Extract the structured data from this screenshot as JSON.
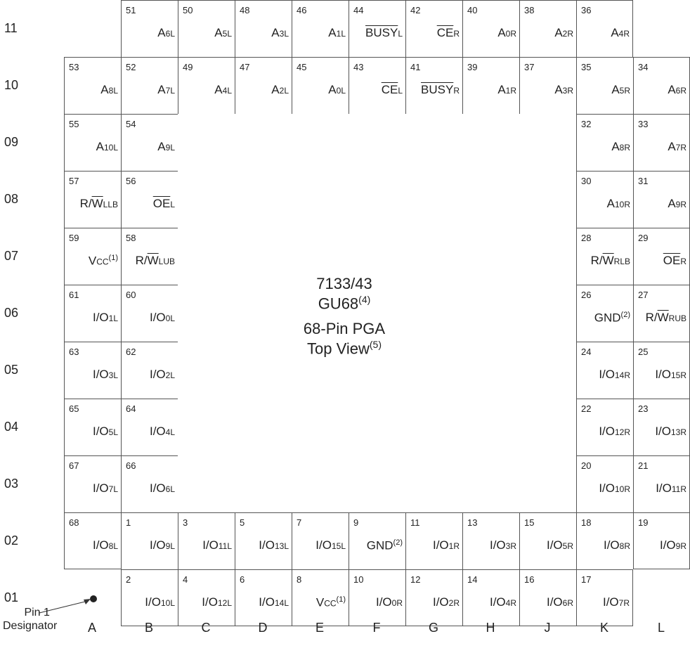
{
  "row_labels": [
    "11",
    "10",
    "09",
    "08",
    "07",
    "06",
    "05",
    "04",
    "03",
    "02",
    "01"
  ],
  "col_labels": [
    "A",
    "B",
    "C",
    "D",
    "E",
    "F",
    "G",
    "H",
    "J",
    "K",
    "L"
  ],
  "center": {
    "line1": "7133/43",
    "line2": "GU68",
    "line2_sup": "(4)",
    "line3": "68-Pin  PGA",
    "line4": "Top View",
    "line4_sup": "(5)"
  },
  "pin1_designator": {
    "line1": "Pin 1",
    "line2": "Designator"
  },
  "pins": [
    {
      "num": "51",
      "col": 1,
      "row": 0,
      "main": "A",
      "sub": "6L"
    },
    {
      "num": "50",
      "col": 2,
      "row": 0,
      "main": "A",
      "sub": "5L"
    },
    {
      "num": "48",
      "col": 3,
      "row": 0,
      "main": "A",
      "sub": "3L"
    },
    {
      "num": "46",
      "col": 4,
      "row": 0,
      "main": "A",
      "sub": "1L"
    },
    {
      "num": "44",
      "col": 5,
      "row": 0,
      "main": "BUSY",
      "sub": "L",
      "overline": true
    },
    {
      "num": "42",
      "col": 6,
      "row": 0,
      "main": "CE",
      "sub": "R",
      "overline": true
    },
    {
      "num": "40",
      "col": 7,
      "row": 0,
      "main": "A",
      "sub": "0R"
    },
    {
      "num": "38",
      "col": 8,
      "row": 0,
      "main": "A",
      "sub": "2R"
    },
    {
      "num": "36",
      "col": 9,
      "row": 0,
      "main": "A",
      "sub": "4R",
      "rb": true
    },
    {
      "num": "53",
      "col": 0,
      "row": 1,
      "main": "A",
      "sub": "8L"
    },
    {
      "num": "52",
      "col": 1,
      "row": 1,
      "main": "A",
      "sub": "7L"
    },
    {
      "num": "49",
      "col": 2,
      "row": 1,
      "main": "A",
      "sub": "4L"
    },
    {
      "num": "47",
      "col": 3,
      "row": 1,
      "main": "A",
      "sub": "2L"
    },
    {
      "num": "45",
      "col": 4,
      "row": 1,
      "main": "A",
      "sub": "0L"
    },
    {
      "num": "43",
      "col": 5,
      "row": 1,
      "main": "CE",
      "sub": "L",
      "overline": true
    },
    {
      "num": "41",
      "col": 6,
      "row": 1,
      "main": "BUSY",
      "sub": "R",
      "overline": true
    },
    {
      "num": "39",
      "col": 7,
      "row": 1,
      "main": "A",
      "sub": "1R"
    },
    {
      "num": "37",
      "col": 8,
      "row": 1,
      "main": "A",
      "sub": "3R"
    },
    {
      "num": "35",
      "col": 9,
      "row": 1,
      "main": "A",
      "sub": "5R"
    },
    {
      "num": "34",
      "col": 10,
      "row": 1,
      "main": "A",
      "sub": "6R"
    },
    {
      "num": "55",
      "col": 0,
      "row": 2,
      "main": "A",
      "sub": "10L"
    },
    {
      "num": "54",
      "col": 1,
      "row": 2,
      "main": "A",
      "sub": "9L"
    },
    {
      "num": "32",
      "col": 9,
      "row": 2,
      "main": "A",
      "sub": "8R"
    },
    {
      "num": "33",
      "col": 10,
      "row": 2,
      "main": "A",
      "sub": "7R"
    },
    {
      "num": "57",
      "col": 0,
      "row": 3,
      "main": "R/",
      "ovpart": "W",
      "sub": "LLB"
    },
    {
      "num": "56",
      "col": 1,
      "row": 3,
      "main": "OE",
      "sub": "L",
      "overline": true
    },
    {
      "num": "30",
      "col": 9,
      "row": 3,
      "main": "A",
      "sub": "10R"
    },
    {
      "num": "31",
      "col": 10,
      "row": 3,
      "main": "A",
      "sub": "9R"
    },
    {
      "num": "59",
      "col": 0,
      "row": 4,
      "main": "V",
      "sub": "CC",
      "sup": "(1)"
    },
    {
      "num": "58",
      "col": 1,
      "row": 4,
      "main": "R/",
      "ovpart": "W",
      "sub": "LUB"
    },
    {
      "num": "28",
      "col": 9,
      "row": 4,
      "main": "R/",
      "ovpart": "W",
      "sub": "RLB"
    },
    {
      "num": "29",
      "col": 10,
      "row": 4,
      "main": "OE",
      "sub": "R",
      "overline": true
    },
    {
      "num": "61",
      "col": 0,
      "row": 5,
      "main": "I/O",
      "sub": "1L"
    },
    {
      "num": "60",
      "col": 1,
      "row": 5,
      "main": "I/O",
      "sub": "0L"
    },
    {
      "num": "26",
      "col": 9,
      "row": 5,
      "main": "GND",
      "sup": "(2)"
    },
    {
      "num": "27",
      "col": 10,
      "row": 5,
      "main": "R/",
      "ovpart": "W",
      "sub": "RUB"
    },
    {
      "num": "63",
      "col": 0,
      "row": 6,
      "main": "I/O",
      "sub": "3L"
    },
    {
      "num": "62",
      "col": 1,
      "row": 6,
      "main": "I/O",
      "sub": "2L"
    },
    {
      "num": "24",
      "col": 9,
      "row": 6,
      "main": "I/O",
      "sub": "14R"
    },
    {
      "num": "25",
      "col": 10,
      "row": 6,
      "main": "I/O",
      "sub": "15R"
    },
    {
      "num": "65",
      "col": 0,
      "row": 7,
      "main": "I/O",
      "sub": "5L"
    },
    {
      "num": "64",
      "col": 1,
      "row": 7,
      "main": "I/O",
      "sub": "4L"
    },
    {
      "num": "22",
      "col": 9,
      "row": 7,
      "main": "I/O",
      "sub": "12R"
    },
    {
      "num": "23",
      "col": 10,
      "row": 7,
      "main": "I/O",
      "sub": "13R"
    },
    {
      "num": "67",
      "col": 0,
      "row": 8,
      "main": "I/O",
      "sub": "7L"
    },
    {
      "num": "66",
      "col": 1,
      "row": 8,
      "main": "I/O",
      "sub": "6L"
    },
    {
      "num": "20",
      "col": 9,
      "row": 8,
      "main": "I/O",
      "sub": "10R"
    },
    {
      "num": "21",
      "col": 10,
      "row": 8,
      "main": "I/O",
      "sub": "11R"
    },
    {
      "num": "68",
      "col": 0,
      "row": 9,
      "main": "I/O",
      "sub": "8L"
    },
    {
      "num": "1",
      "col": 1,
      "row": 9,
      "main": "I/O",
      "sub": "9L"
    },
    {
      "num": "3",
      "col": 2,
      "row": 9,
      "main": "I/O",
      "sub": "11L"
    },
    {
      "num": "5",
      "col": 3,
      "row": 9,
      "main": "I/O",
      "sub": "13L"
    },
    {
      "num": "7",
      "col": 4,
      "row": 9,
      "main": "I/O",
      "sub": "15L"
    },
    {
      "num": "9",
      "col": 5,
      "row": 9,
      "main": "GND",
      "sup": "(2)"
    },
    {
      "num": "11",
      "col": 6,
      "row": 9,
      "main": "I/O",
      "sub": "1R"
    },
    {
      "num": "13",
      "col": 7,
      "row": 9,
      "main": "I/O",
      "sub": "3R"
    },
    {
      "num": "15",
      "col": 8,
      "row": 9,
      "main": "I/O",
      "sub": "5R"
    },
    {
      "num": "18",
      "col": 9,
      "row": 9,
      "main": "I/O",
      "sub": "8R"
    },
    {
      "num": "19",
      "col": 10,
      "row": 9,
      "main": "I/O",
      "sub": "9R"
    },
    {
      "num": "2",
      "col": 1,
      "row": 10,
      "main": "I/O",
      "sub": "10L"
    },
    {
      "num": "4",
      "col": 2,
      "row": 10,
      "main": "I/O",
      "sub": "12L"
    },
    {
      "num": "6",
      "col": 3,
      "row": 10,
      "main": "I/O",
      "sub": "14L"
    },
    {
      "num": "8",
      "col": 4,
      "row": 10,
      "main": "V",
      "sub": "CC",
      "sup": "(1)"
    },
    {
      "num": "10",
      "col": 5,
      "row": 10,
      "main": "I/O",
      "sub": "0R"
    },
    {
      "num": "12",
      "col": 6,
      "row": 10,
      "main": "I/O",
      "sub": "2R"
    },
    {
      "num": "14",
      "col": 7,
      "row": 10,
      "main": "I/O",
      "sub": "4R"
    },
    {
      "num": "16",
      "col": 8,
      "row": 10,
      "main": "I/O",
      "sub": "6R"
    },
    {
      "num": "17",
      "col": 9,
      "row": 10,
      "main": "I/O",
      "sub": "7R",
      "rb": true
    }
  ]
}
